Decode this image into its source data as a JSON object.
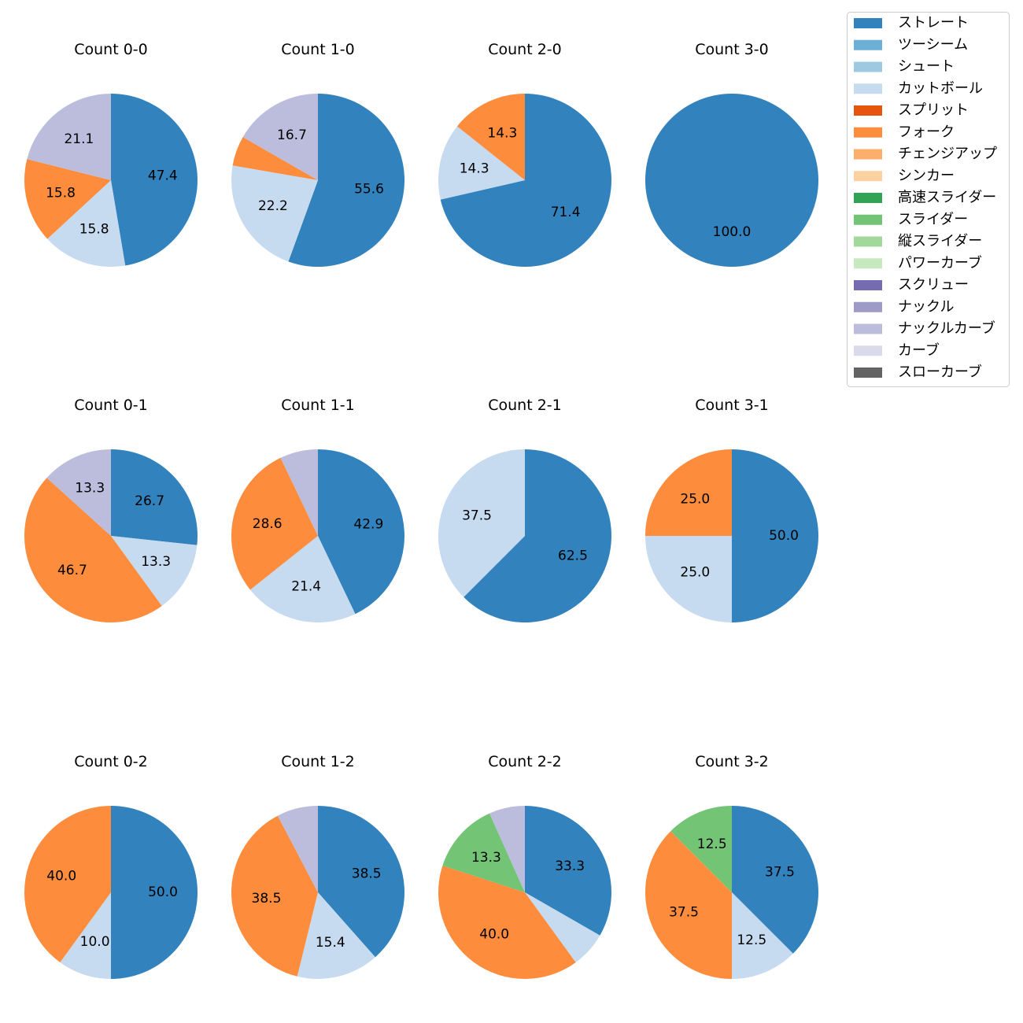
{
  "legend": [
    {
      "name": "ストレート",
      "color": "#3182bd"
    },
    {
      "name": "ツーシーム",
      "color": "#6baed6"
    },
    {
      "name": "シュート",
      "color": "#9ecae1"
    },
    {
      "name": "カットボール",
      "color": "#c6dbef"
    },
    {
      "name": "スプリット",
      "color": "#e6550d"
    },
    {
      "name": "フォーク",
      "color": "#fd8d3c"
    },
    {
      "name": "チェンジアップ",
      "color": "#fdae6b"
    },
    {
      "name": "シンカー",
      "color": "#fdd0a2"
    },
    {
      "name": "高速スライダー",
      "color": "#31a354"
    },
    {
      "name": "スライダー",
      "color": "#74c476"
    },
    {
      "name": "縦スライダー",
      "color": "#a1d99b"
    },
    {
      "name": "パワーカーブ",
      "color": "#c7e9c0"
    },
    {
      "name": "スクリュー",
      "color": "#756bb1"
    },
    {
      "name": "ナックル",
      "color": "#9e9ac8"
    },
    {
      "name": "ナックルカーブ",
      "color": "#bcbddc"
    },
    {
      "name": "カーブ",
      "color": "#dadaeb"
    },
    {
      "name": "スローカーブ",
      "color": "#636363"
    }
  ],
  "chart_data": [
    {
      "type": "pie",
      "title": "Count 0-0",
      "slices": [
        {
          "name": "ストレート",
          "value": 47.4,
          "label": "47.4"
        },
        {
          "name": "カットボール",
          "value": 15.8,
          "label": "15.8"
        },
        {
          "name": "フォーク",
          "value": 15.8,
          "label": "15.8"
        },
        {
          "name": "ナックルカーブ",
          "value": 21.1,
          "label": "21.1"
        }
      ]
    },
    {
      "type": "pie",
      "title": "Count 1-0",
      "slices": [
        {
          "name": "ストレート",
          "value": 55.6,
          "label": "55.6"
        },
        {
          "name": "カットボール",
          "value": 22.2,
          "label": "22.2"
        },
        {
          "name": "フォーク",
          "value": 5.6,
          "label": ""
        },
        {
          "name": "ナックルカーブ",
          "value": 16.7,
          "label": "16.7"
        }
      ]
    },
    {
      "type": "pie",
      "title": "Count 2-0",
      "slices": [
        {
          "name": "ストレート",
          "value": 71.4,
          "label": "71.4"
        },
        {
          "name": "カットボール",
          "value": 14.3,
          "label": "14.3"
        },
        {
          "name": "フォーク",
          "value": 14.3,
          "label": "14.3"
        }
      ]
    },
    {
      "type": "pie",
      "title": "Count 3-0",
      "slices": [
        {
          "name": "ストレート",
          "value": 100.0,
          "label": "100.0"
        }
      ]
    },
    {
      "type": "pie",
      "title": "Count 0-1",
      "slices": [
        {
          "name": "ストレート",
          "value": 26.7,
          "label": "26.7"
        },
        {
          "name": "カットボール",
          "value": 13.3,
          "label": "13.3"
        },
        {
          "name": "フォーク",
          "value": 46.7,
          "label": "46.7"
        },
        {
          "name": "ナックルカーブ",
          "value": 13.3,
          "label": "13.3"
        }
      ]
    },
    {
      "type": "pie",
      "title": "Count 1-1",
      "slices": [
        {
          "name": "ストレート",
          "value": 42.9,
          "label": "42.9"
        },
        {
          "name": "カットボール",
          "value": 21.4,
          "label": "21.4"
        },
        {
          "name": "フォーク",
          "value": 28.6,
          "label": "28.6"
        },
        {
          "name": "ナックルカーブ",
          "value": 7.1,
          "label": ""
        }
      ]
    },
    {
      "type": "pie",
      "title": "Count 2-1",
      "slices": [
        {
          "name": "ストレート",
          "value": 62.5,
          "label": "62.5"
        },
        {
          "name": "カットボール",
          "value": 37.5,
          "label": "37.5"
        }
      ]
    },
    {
      "type": "pie",
      "title": "Count 3-1",
      "slices": [
        {
          "name": "ストレート",
          "value": 50.0,
          "label": "50.0"
        },
        {
          "name": "カットボール",
          "value": 25.0,
          "label": "25.0"
        },
        {
          "name": "フォーク",
          "value": 25.0,
          "label": "25.0"
        }
      ]
    },
    {
      "type": "pie",
      "title": "Count 0-2",
      "slices": [
        {
          "name": "ストレート",
          "value": 50.0,
          "label": "50.0"
        },
        {
          "name": "カットボール",
          "value": 10.0,
          "label": "10.0"
        },
        {
          "name": "フォーク",
          "value": 40.0,
          "label": "40.0"
        }
      ]
    },
    {
      "type": "pie",
      "title": "Count 1-2",
      "slices": [
        {
          "name": "ストレート",
          "value": 38.5,
          "label": "38.5"
        },
        {
          "name": "カットボール",
          "value": 15.4,
          "label": "15.4"
        },
        {
          "name": "フォーク",
          "value": 38.5,
          "label": "38.5"
        },
        {
          "name": "ナックルカーブ",
          "value": 7.7,
          "label": ""
        }
      ]
    },
    {
      "type": "pie",
      "title": "Count 2-2",
      "slices": [
        {
          "name": "ストレート",
          "value": 33.3,
          "label": "33.3"
        },
        {
          "name": "カットボール",
          "value": 6.7,
          "label": ""
        },
        {
          "name": "フォーク",
          "value": 40.0,
          "label": "40.0"
        },
        {
          "name": "スライダー",
          "value": 13.3,
          "label": "13.3"
        },
        {
          "name": "ナックルカーブ",
          "value": 6.7,
          "label": ""
        }
      ]
    },
    {
      "type": "pie",
      "title": "Count 3-2",
      "slices": [
        {
          "name": "ストレート",
          "value": 37.5,
          "label": "37.5"
        },
        {
          "name": "カットボール",
          "value": 12.5,
          "label": "12.5"
        },
        {
          "name": "フォーク",
          "value": 37.5,
          "label": "37.5"
        },
        {
          "name": "スライダー",
          "value": 12.5,
          "label": "12.5"
        }
      ]
    }
  ]
}
